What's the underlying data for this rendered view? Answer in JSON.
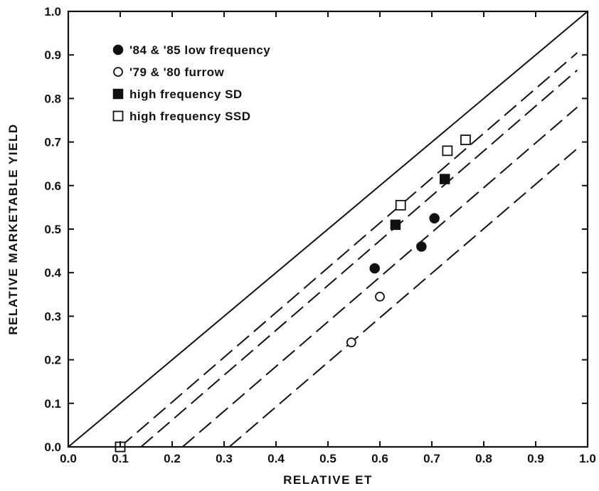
{
  "chart_data": {
    "type": "scatter",
    "xlabel": "RELATIVE ET",
    "ylabel": "RELATIVE MARKETABLE YIELD",
    "xlim": [
      0.0,
      1.0
    ],
    "ylim": [
      0.0,
      1.0
    ],
    "x_ticks": [
      "0.0",
      "0.1",
      "0.2",
      "0.3",
      "0.4",
      "0.5",
      "0.6",
      "0.7",
      "0.8",
      "0.9",
      "1.0"
    ],
    "y_ticks": [
      "0.0",
      "0.1",
      "0.2",
      "0.3",
      "0.4",
      "0.5",
      "0.6",
      "0.7",
      "0.8",
      "0.9",
      "1.0"
    ],
    "grid": false,
    "legend_position": "top-left",
    "series": [
      {
        "name": "'84 & '85 low frequency",
        "marker": "filled-circle",
        "points": [
          [
            0.59,
            0.41
          ],
          [
            0.68,
            0.46
          ],
          [
            0.705,
            0.525
          ]
        ]
      },
      {
        "name": "'79 & '80 furrow",
        "marker": "open-circle",
        "points": [
          [
            0.545,
            0.24
          ],
          [
            0.6,
            0.345
          ]
        ]
      },
      {
        "name": "high frequency SD",
        "marker": "filled-square",
        "points": [
          [
            0.1,
            0.0
          ],
          [
            0.63,
            0.51
          ],
          [
            0.725,
            0.615
          ]
        ]
      },
      {
        "name": "high frequency SSD",
        "marker": "open-square",
        "points": [
          [
            0.1,
            0.0
          ],
          [
            0.64,
            0.555
          ],
          [
            0.73,
            0.68
          ],
          [
            0.765,
            0.705
          ]
        ]
      }
    ],
    "lines": [
      {
        "style": "solid",
        "from": [
          0.0,
          0.0
        ],
        "to": [
          1.0,
          1.0
        ]
      },
      {
        "style": "dashed",
        "from": [
          0.1,
          0.0
        ],
        "to": [
          0.98,
          0.905
        ]
      },
      {
        "style": "dashed",
        "from": [
          0.14,
          0.0
        ],
        "to": [
          0.98,
          0.865
        ]
      },
      {
        "style": "dashed",
        "from": [
          0.22,
          0.0
        ],
        "to": [
          0.98,
          0.78
        ]
      },
      {
        "style": "dashed",
        "from": [
          0.31,
          0.0
        ],
        "to": [
          0.98,
          0.685
        ]
      }
    ],
    "colors": {
      "ink": "#111111",
      "background": "#ffffff"
    }
  }
}
